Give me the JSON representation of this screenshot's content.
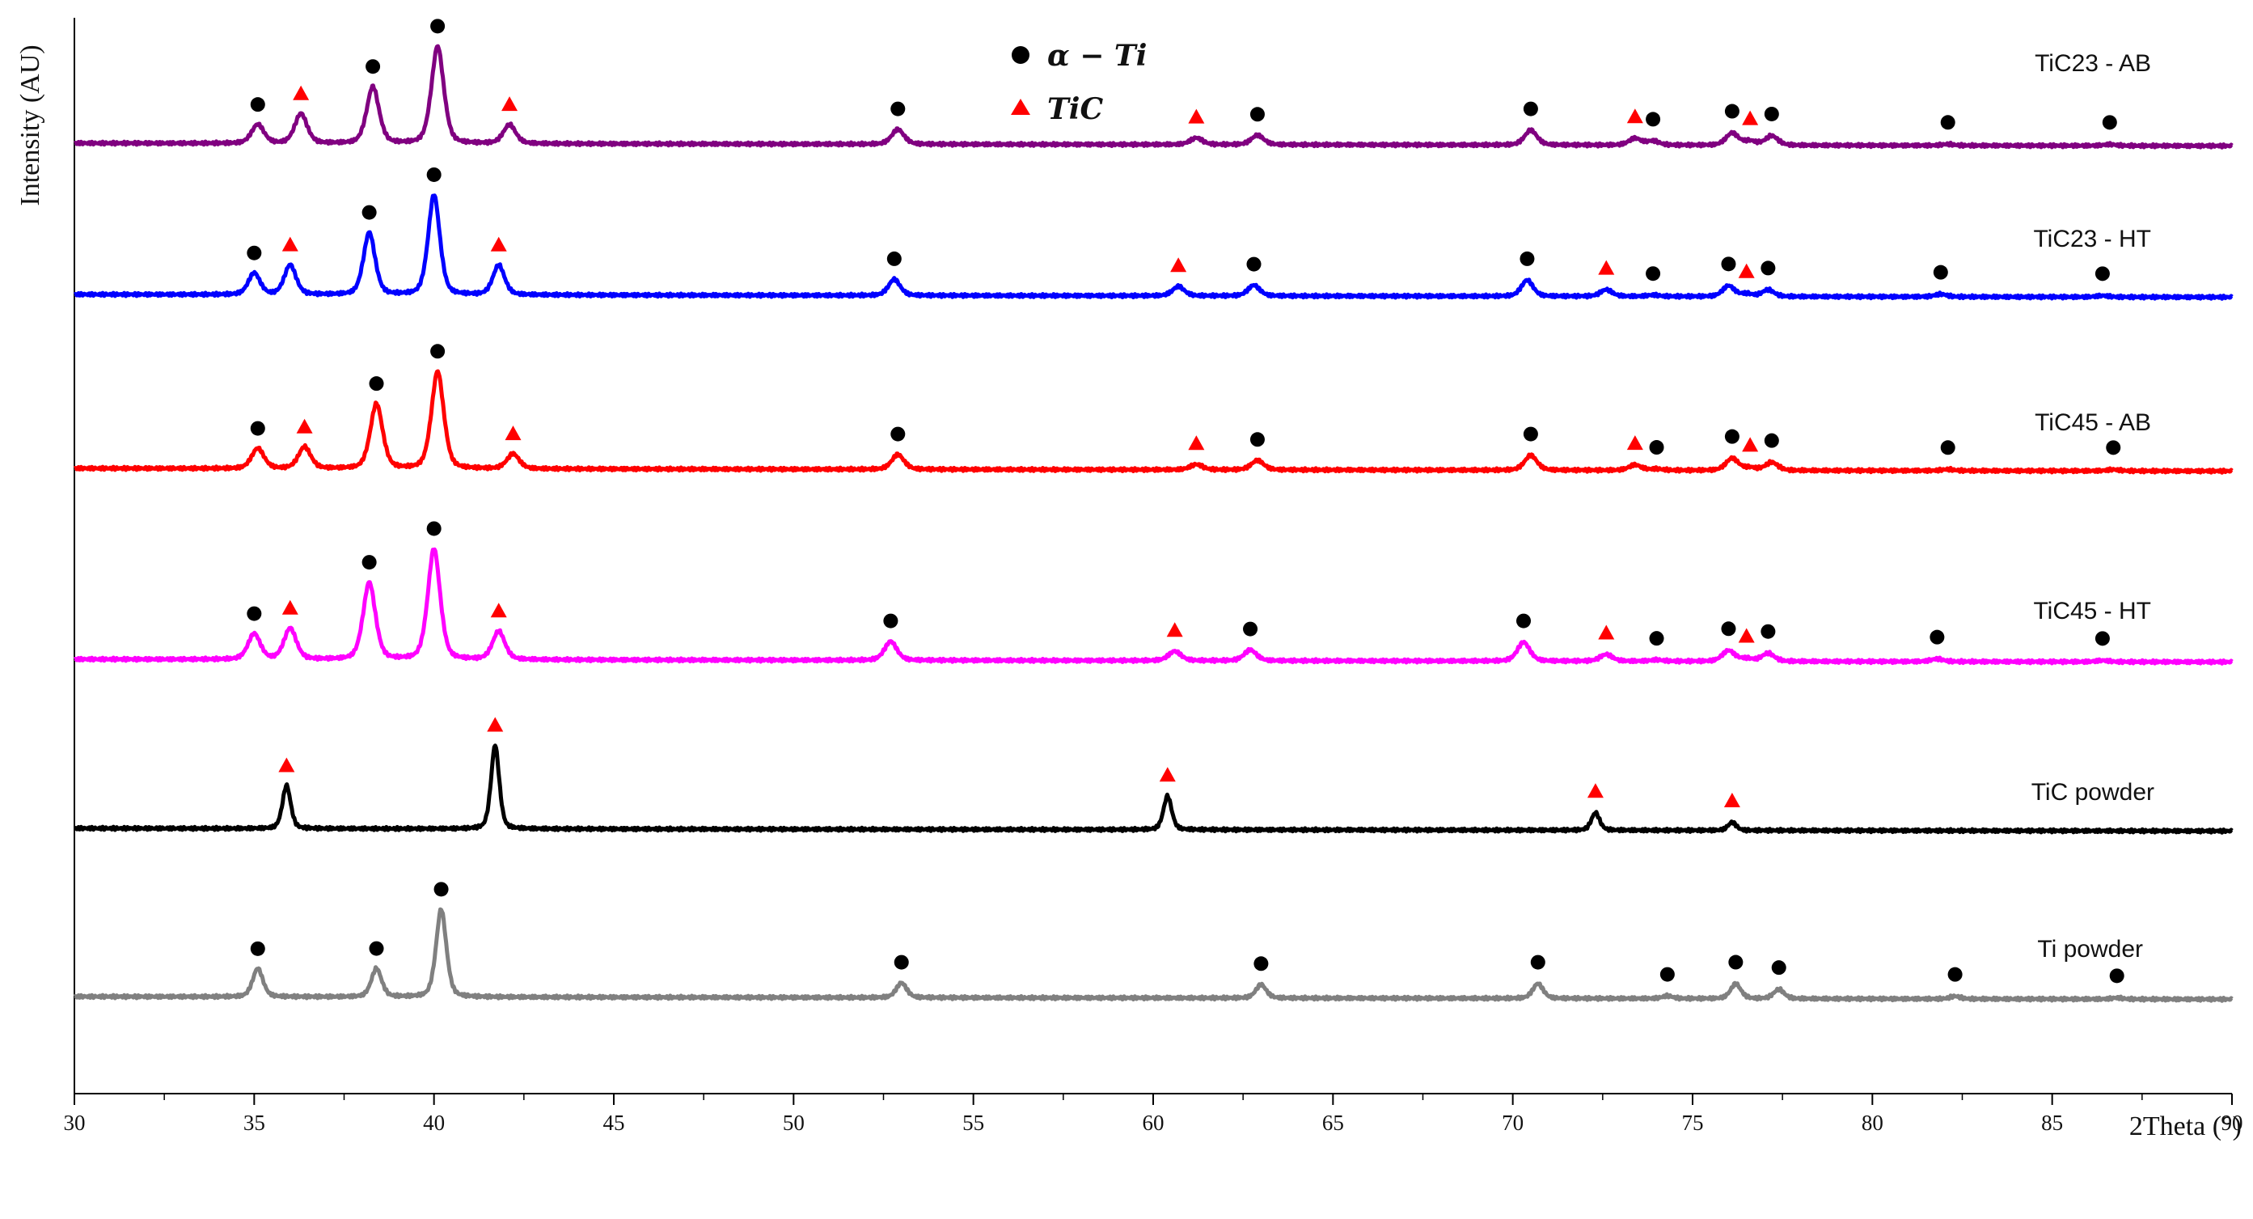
{
  "chart_data": {
    "type": "line",
    "title": "",
    "xlabel": "2Theta (°)",
    "ylabel": "Intensity (AU)",
    "xlim": [
      30,
      90
    ],
    "x_ticks": [
      30,
      35,
      40,
      45,
      50,
      55,
      60,
      65,
      70,
      75,
      80,
      85,
      90
    ],
    "grid": false,
    "legend": {
      "placement": "top-center",
      "items": [
        {
          "name": "α − Ti",
          "marker": "circle",
          "color": "#000000"
        },
        {
          "name": "TiC",
          "marker": "triangle",
          "color": "#ff0000"
        }
      ]
    },
    "series": [
      {
        "name": "TiC23 - AB",
        "color": "#800080",
        "offset": 5,
        "width": 0.18,
        "peaks": [
          {
            "x": 35.1,
            "h": 0.14,
            "marker": "circle"
          },
          {
            "x": 36.3,
            "h": 0.22,
            "marker": "triangle"
          },
          {
            "x": 38.3,
            "h": 0.42,
            "marker": "circle"
          },
          {
            "x": 40.1,
            "h": 0.72,
            "marker": "circle"
          },
          {
            "x": 42.1,
            "h": 0.14,
            "marker": "triangle"
          },
          {
            "x": 52.9,
            "h": 0.11,
            "marker": "circle"
          },
          {
            "x": 61.2,
            "h": 0.05,
            "marker": "triangle"
          },
          {
            "x": 62.9,
            "h": 0.07,
            "marker": "circle"
          },
          {
            "x": 70.5,
            "h": 0.11,
            "marker": "circle"
          },
          {
            "x": 73.4,
            "h": 0.05,
            "marker": "triangle"
          },
          {
            "x": 73.9,
            "h": 0.03,
            "marker": "circle"
          },
          {
            "x": 76.1,
            "h": 0.09,
            "marker": "circle"
          },
          {
            "x": 76.6,
            "h": 0.03,
            "marker": "triangle"
          },
          {
            "x": 77.2,
            "h": 0.07,
            "marker": "circle"
          },
          {
            "x": 82.1,
            "h": 0.01,
            "marker": "circle"
          },
          {
            "x": 86.6,
            "h": 0.01,
            "marker": "circle"
          }
        ]
      },
      {
        "name": "TiC23 - HT",
        "color": "#0000ff",
        "offset": 4,
        "width": 0.17,
        "peaks": [
          {
            "x": 35.0,
            "h": 0.16,
            "marker": "circle"
          },
          {
            "x": 36.0,
            "h": 0.22,
            "marker": "triangle"
          },
          {
            "x": 38.2,
            "h": 0.46,
            "marker": "circle"
          },
          {
            "x": 40.0,
            "h": 0.74,
            "marker": "circle"
          },
          {
            "x": 41.8,
            "h": 0.22,
            "marker": "triangle"
          },
          {
            "x": 52.8,
            "h": 0.12,
            "marker": "circle"
          },
          {
            "x": 60.7,
            "h": 0.07,
            "marker": "triangle"
          },
          {
            "x": 62.8,
            "h": 0.08,
            "marker": "circle"
          },
          {
            "x": 70.4,
            "h": 0.12,
            "marker": "circle"
          },
          {
            "x": 72.6,
            "h": 0.05,
            "marker": "triangle"
          },
          {
            "x": 73.9,
            "h": 0.01,
            "marker": "circle"
          },
          {
            "x": 76.0,
            "h": 0.08,
            "marker": "circle"
          },
          {
            "x": 76.5,
            "h": 0.02,
            "marker": "triangle"
          },
          {
            "x": 77.1,
            "h": 0.05,
            "marker": "circle"
          },
          {
            "x": 81.9,
            "h": 0.02,
            "marker": "circle"
          },
          {
            "x": 86.4,
            "h": 0.01,
            "marker": "circle"
          }
        ]
      },
      {
        "name": "TiC45 - AB",
        "color": "#ff0000",
        "offset": 3,
        "width": 0.18,
        "peaks": [
          {
            "x": 35.1,
            "h": 0.15,
            "marker": "circle"
          },
          {
            "x": 36.4,
            "h": 0.16,
            "marker": "triangle"
          },
          {
            "x": 38.4,
            "h": 0.48,
            "marker": "circle"
          },
          {
            "x": 40.1,
            "h": 0.72,
            "marker": "circle"
          },
          {
            "x": 42.2,
            "h": 0.11,
            "marker": "triangle"
          },
          {
            "x": 52.9,
            "h": 0.11,
            "marker": "circle"
          },
          {
            "x": 61.2,
            "h": 0.04,
            "marker": "triangle"
          },
          {
            "x": 62.9,
            "h": 0.07,
            "marker": "circle"
          },
          {
            "x": 70.5,
            "h": 0.11,
            "marker": "circle"
          },
          {
            "x": 73.4,
            "h": 0.04,
            "marker": "triangle"
          },
          {
            "x": 74.0,
            "h": 0.01,
            "marker": "circle"
          },
          {
            "x": 76.1,
            "h": 0.09,
            "marker": "circle"
          },
          {
            "x": 76.6,
            "h": 0.02,
            "marker": "triangle"
          },
          {
            "x": 77.2,
            "h": 0.06,
            "marker": "circle"
          },
          {
            "x": 82.1,
            "h": 0.01,
            "marker": "circle"
          },
          {
            "x": 86.7,
            "h": 0.01,
            "marker": "circle"
          }
        ]
      },
      {
        "name": "TiC45 - HT",
        "color": "#ff00ff",
        "offset": 2,
        "width": 0.18,
        "peaks": [
          {
            "x": 35.0,
            "h": 0.19,
            "marker": "circle"
          },
          {
            "x": 36.0,
            "h": 0.23,
            "marker": "triangle"
          },
          {
            "x": 38.2,
            "h": 0.57,
            "marker": "circle"
          },
          {
            "x": 40.0,
            "h": 0.82,
            "marker": "circle"
          },
          {
            "x": 41.8,
            "h": 0.21,
            "marker": "triangle"
          },
          {
            "x": 52.7,
            "h": 0.14,
            "marker": "circle"
          },
          {
            "x": 60.6,
            "h": 0.07,
            "marker": "triangle"
          },
          {
            "x": 62.7,
            "h": 0.08,
            "marker": "circle"
          },
          {
            "x": 70.3,
            "h": 0.14,
            "marker": "circle"
          },
          {
            "x": 72.6,
            "h": 0.05,
            "marker": "triangle"
          },
          {
            "x": 74.0,
            "h": 0.01,
            "marker": "circle"
          },
          {
            "x": 76.0,
            "h": 0.08,
            "marker": "circle"
          },
          {
            "x": 76.5,
            "h": 0.02,
            "marker": "triangle"
          },
          {
            "x": 77.1,
            "h": 0.06,
            "marker": "circle"
          },
          {
            "x": 81.8,
            "h": 0.02,
            "marker": "circle"
          },
          {
            "x": 86.4,
            "h": 0.01,
            "marker": "circle"
          }
        ]
      },
      {
        "name": "TiC powder",
        "color": "#000000",
        "offset": 1,
        "width": 0.12,
        "peaks": [
          {
            "x": 35.9,
            "h": 0.32,
            "marker": "triangle"
          },
          {
            "x": 41.7,
            "h": 0.62,
            "marker": "triangle"
          },
          {
            "x": 60.4,
            "h": 0.25,
            "marker": "triangle"
          },
          {
            "x": 72.3,
            "h": 0.13,
            "marker": "triangle"
          },
          {
            "x": 76.1,
            "h": 0.06,
            "marker": "triangle"
          }
        ]
      },
      {
        "name": "Ti powder",
        "color": "#808080",
        "offset": 0,
        "width": 0.15,
        "peaks": [
          {
            "x": 35.1,
            "h": 0.21,
            "marker": "circle"
          },
          {
            "x": 38.4,
            "h": 0.21,
            "marker": "circle"
          },
          {
            "x": 40.2,
            "h": 0.65,
            "marker": "circle"
          },
          {
            "x": 53.0,
            "h": 0.11,
            "marker": "circle"
          },
          {
            "x": 63.0,
            "h": 0.1,
            "marker": "circle"
          },
          {
            "x": 70.7,
            "h": 0.11,
            "marker": "circle"
          },
          {
            "x": 74.3,
            "h": 0.02,
            "marker": "circle"
          },
          {
            "x": 76.2,
            "h": 0.11,
            "marker": "circle"
          },
          {
            "x": 77.4,
            "h": 0.07,
            "marker": "circle"
          },
          {
            "x": 82.3,
            "h": 0.02,
            "marker": "circle"
          },
          {
            "x": 86.8,
            "h": 0.01,
            "marker": "circle"
          }
        ]
      }
    ]
  }
}
